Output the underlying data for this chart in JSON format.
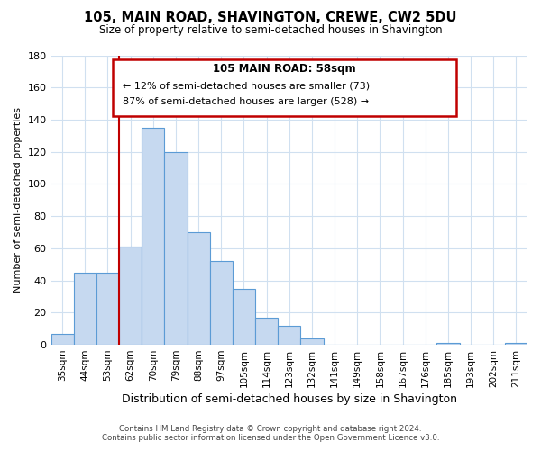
{
  "title": "105, MAIN ROAD, SHAVINGTON, CREWE, CW2 5DU",
  "subtitle": "Size of property relative to semi-detached houses in Shavington",
  "xlabel": "Distribution of semi-detached houses by size in Shavington",
  "ylabel": "Number of semi-detached properties",
  "bar_labels": [
    "35sqm",
    "44sqm",
    "53sqm",
    "62sqm",
    "70sqm",
    "79sqm",
    "88sqm",
    "97sqm",
    "105sqm",
    "114sqm",
    "123sqm",
    "132sqm",
    "141sqm",
    "149sqm",
    "158sqm",
    "167sqm",
    "176sqm",
    "185sqm",
    "193sqm",
    "202sqm",
    "211sqm"
  ],
  "bar_values": [
    7,
    45,
    45,
    61,
    135,
    120,
    70,
    52,
    35,
    17,
    12,
    4,
    0,
    0,
    0,
    0,
    0,
    1,
    0,
    0,
    1
  ],
  "bar_color": "#c6d9f0",
  "bar_edge_color": "#5b9bd5",
  "ylim": [
    0,
    180
  ],
  "yticks": [
    0,
    20,
    40,
    60,
    80,
    100,
    120,
    140,
    160,
    180
  ],
  "property_label": "105 MAIN ROAD: 58sqm",
  "vline_color": "#c00000",
  "annotation_smaller": "← 12% of semi-detached houses are smaller (73)",
  "annotation_larger": "87% of semi-detached houses are larger (528) →",
  "annotation_box_color": "#c00000",
  "footnote1": "Contains HM Land Registry data © Crown copyright and database right 2024.",
  "footnote2": "Contains public sector information licensed under the Open Government Licence v3.0.",
  "background_color": "#ffffff",
  "grid_color": "#d0e0f0"
}
